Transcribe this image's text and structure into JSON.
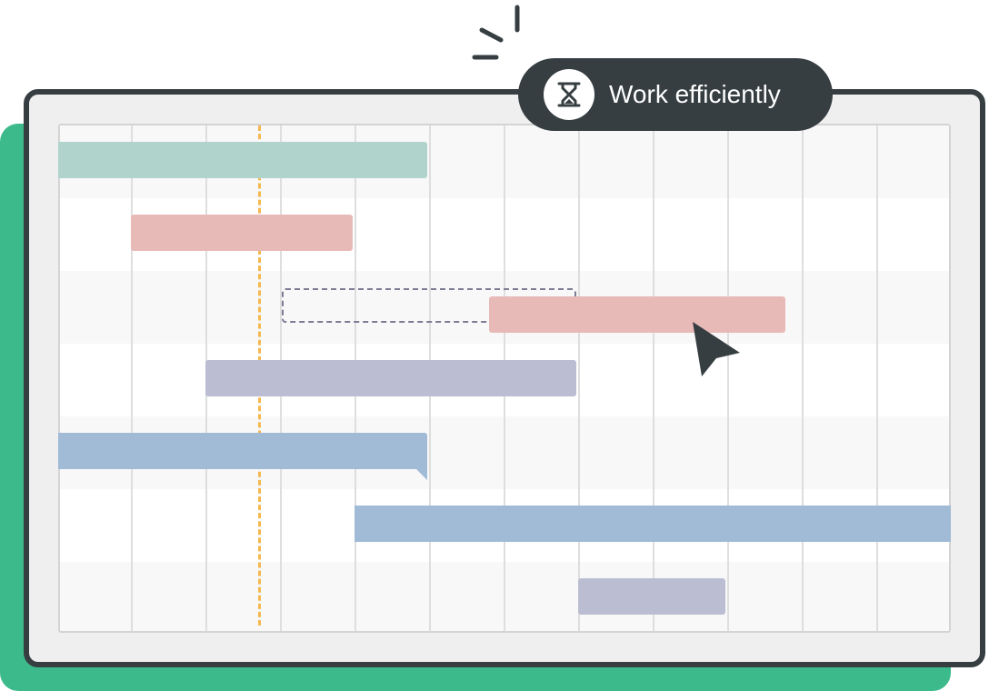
{
  "badge": {
    "label": "Work efficiently",
    "icon": "hourglass-icon"
  },
  "colors": {
    "background_accent": "#3dba8c",
    "frame": "#363e42",
    "today_marker": "#f3b84e",
    "bar_teal": "#b0d3cc",
    "bar_pink": "#e8bab7",
    "bar_lavender": "#bbbed2",
    "bar_blue": "#a1bbd7"
  },
  "gantt": {
    "columns": 12,
    "today_marker_column": 2.7,
    "tasks": [
      {
        "row": 1,
        "start": 0,
        "end": 5,
        "color": "teal"
      },
      {
        "row": 2,
        "start": 1,
        "end": 4,
        "color": "pink"
      },
      {
        "row": 3,
        "start": 5.8,
        "end": 9.8,
        "color": "pink",
        "ghost_start": 3,
        "ghost_end": 7
      },
      {
        "row": 4,
        "start": 2,
        "end": 7,
        "color": "lavender"
      },
      {
        "row": 5,
        "start": 0,
        "end": 5,
        "color": "blue",
        "has_dependency_link": true
      },
      {
        "row": 6,
        "start": 4,
        "end": 12,
        "color": "blue"
      },
      {
        "row": 7,
        "start": 7,
        "end": 9,
        "color": "lavender"
      }
    ]
  }
}
